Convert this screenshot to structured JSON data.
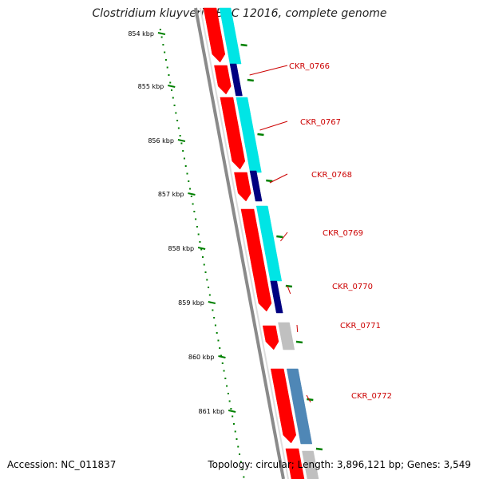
{
  "title": "Clostridium kluyveri NBRC 12016, complete genome",
  "accession": "Accession: NC_011837",
  "stats": "Topology: circular; Length: 3,896,121 bp; Genes: 3,549",
  "ticks": [
    "854 kbp",
    "855 kbp",
    "856 kbp",
    "857 kbp",
    "858 kbp",
    "859 kbp",
    "860 kbp",
    "861 kbp"
  ],
  "genes": [
    "CKR_0766",
    "CKR_0767",
    "CKR_0768",
    "CKR_0769",
    "CKR_0770",
    "CKR_0771",
    "CKR_0772"
  ],
  "colors": {
    "cds": "#ff0000",
    "match": "#00e5e5",
    "match_dark": "#000080",
    "gray": "#c0c0c0",
    "steel": "#4f87b6",
    "tick": "#008000",
    "backbone": "#777777",
    "label": "#cc0000"
  }
}
